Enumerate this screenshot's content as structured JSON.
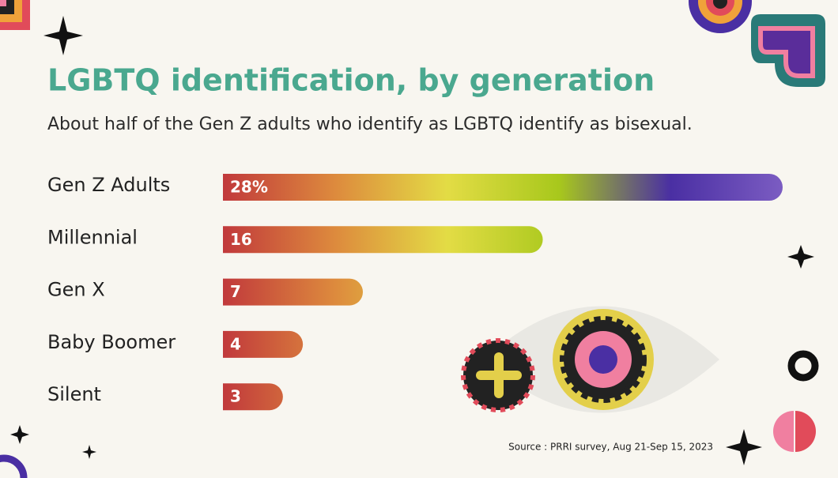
{
  "chart_data": {
    "type": "bar",
    "orientation": "horizontal",
    "title": "LGBTQ identification, by generation",
    "subtitle": "About half of the Gen Z adults who identify as LGBTQ identify as bisexual.",
    "categories": [
      "Gen Z Adults",
      "Millennial",
      "Gen X",
      "Baby Boomer",
      "Silent"
    ],
    "values": [
      28,
      16,
      7,
      4,
      3
    ],
    "value_labels": [
      "28%",
      "16",
      "7",
      "4",
      "3"
    ],
    "colors": [
      "#c1393c",
      "#dd8a3d",
      "#e3dc45",
      "#a8c81c",
      "#4a2fa3",
      "#7b5cc2"
    ],
    "source": "Source : PRRI survey, Aug 21-Sep 15, 2023"
  }
}
